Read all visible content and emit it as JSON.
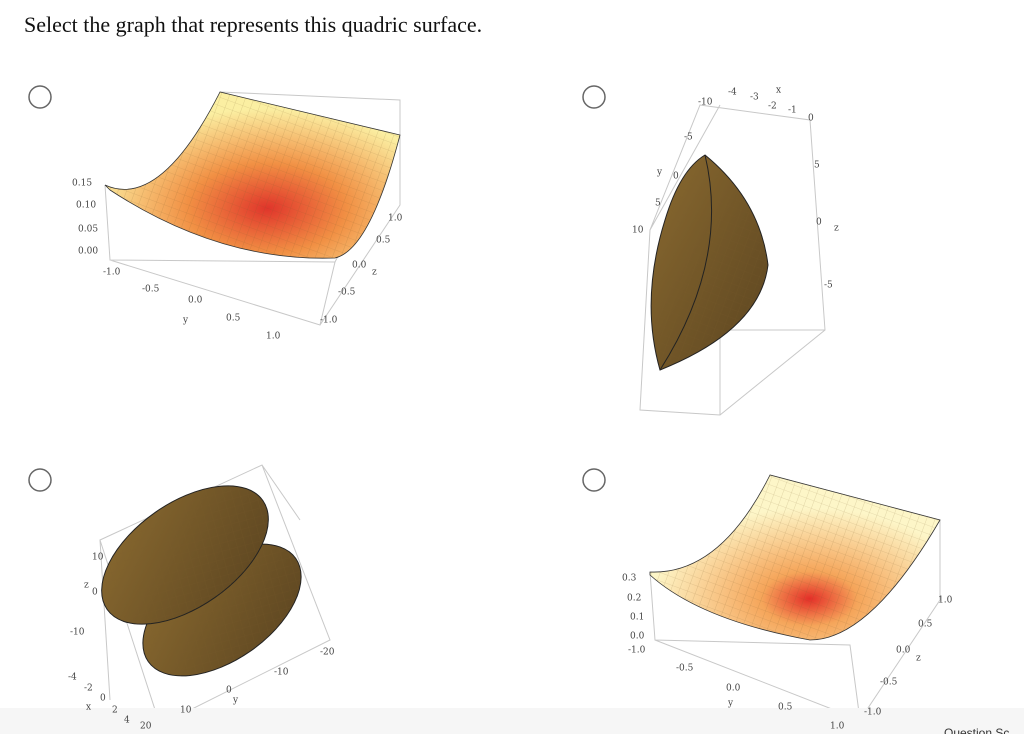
{
  "question": "Select the graph that represents this quadric surface.",
  "options": [
    {
      "ticks": [
        "0.15",
        "0.10",
        "0.05",
        "0.00",
        "-1.0",
        "-0.5",
        "0.0",
        "y",
        "0.5",
        "1.0",
        "1.0",
        "0.5",
        "0.0",
        "z",
        "-0.5",
        "-1.0"
      ]
    },
    {
      "ticks": [
        "-10",
        "-4",
        "-3",
        "x",
        "-2",
        "-1",
        "0",
        "-5",
        "y",
        "0",
        "5",
        "10",
        "5",
        "0",
        "z",
        "-5"
      ]
    },
    {
      "ticks": [
        "10",
        "z",
        "0",
        "-10",
        "-4",
        "-2",
        "x",
        "0",
        "2",
        "4",
        "20",
        "10",
        "0",
        "y",
        "-10",
        "-20"
      ]
    },
    {
      "ticks": [
        "0.3",
        "0.2",
        "0.1",
        "0.0",
        "-1.0",
        "-0.5",
        "0.0",
        "y",
        "0.5",
        "1.0",
        "1.0",
        "0.5",
        "0.0",
        "z",
        "-0.5",
        "-1.0"
      ]
    }
  ],
  "footer": "Question Sc"
}
